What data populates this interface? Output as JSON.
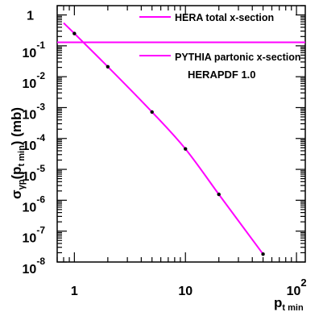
{
  "chart_data": {
    "type": "line",
    "title": "",
    "xlabel": {
      "base": "p",
      "sub": "t min"
    },
    "ylabel": {
      "pre": "σ",
      "sub1": "γp",
      "mid": "(p",
      "sub2": "t min",
      "post": ") (mb)"
    },
    "x_scale": "log",
    "y_scale": "log",
    "xlim": [
      0.7,
      120
    ],
    "ylim": [
      1e-08,
      2
    ],
    "x_ticks": [
      {
        "value": 1,
        "base": "1",
        "exp": ""
      },
      {
        "value": 10,
        "base": "10",
        "exp": ""
      },
      {
        "value": 100,
        "base": "10",
        "exp": "2"
      }
    ],
    "y_ticks": [
      {
        "value": 1,
        "base": "1",
        "exp": ""
      },
      {
        "value": 0.1,
        "base": "10",
        "exp": "-1"
      },
      {
        "value": 0.01,
        "base": "10",
        "exp": "-2"
      },
      {
        "value": 0.001,
        "base": "10",
        "exp": "-3"
      },
      {
        "value": 0.0001,
        "base": "10",
        "exp": "-4"
      },
      {
        "value": 1e-05,
        "base": "10",
        "exp": "-5"
      },
      {
        "value": 1e-06,
        "base": "10",
        "exp": "-6"
      },
      {
        "value": 1e-07,
        "base": "10",
        "exp": "-7"
      },
      {
        "value": 1e-08,
        "base": "10",
        "exp": "-8"
      }
    ],
    "series": [
      {
        "name": "HERA total x-section",
        "color": "#ff00ff",
        "style": "horizontal-line",
        "y": 0.13
      },
      {
        "name": "PYTHIA partonic x-section",
        "color": "#ff00ff",
        "style": "curve-with-markers",
        "x": [
          0.8,
          1,
          2,
          5,
          10,
          20,
          50
        ],
        "y": [
          0.55,
          0.25,
          0.021,
          0.00072,
          4.6e-05,
          1.55e-06,
          1.8e-08
        ]
      }
    ],
    "annotations": [
      "HERAPDF 1.0"
    ],
    "legend_position": "top-right",
    "grid": false,
    "marker_color": "#000000"
  }
}
